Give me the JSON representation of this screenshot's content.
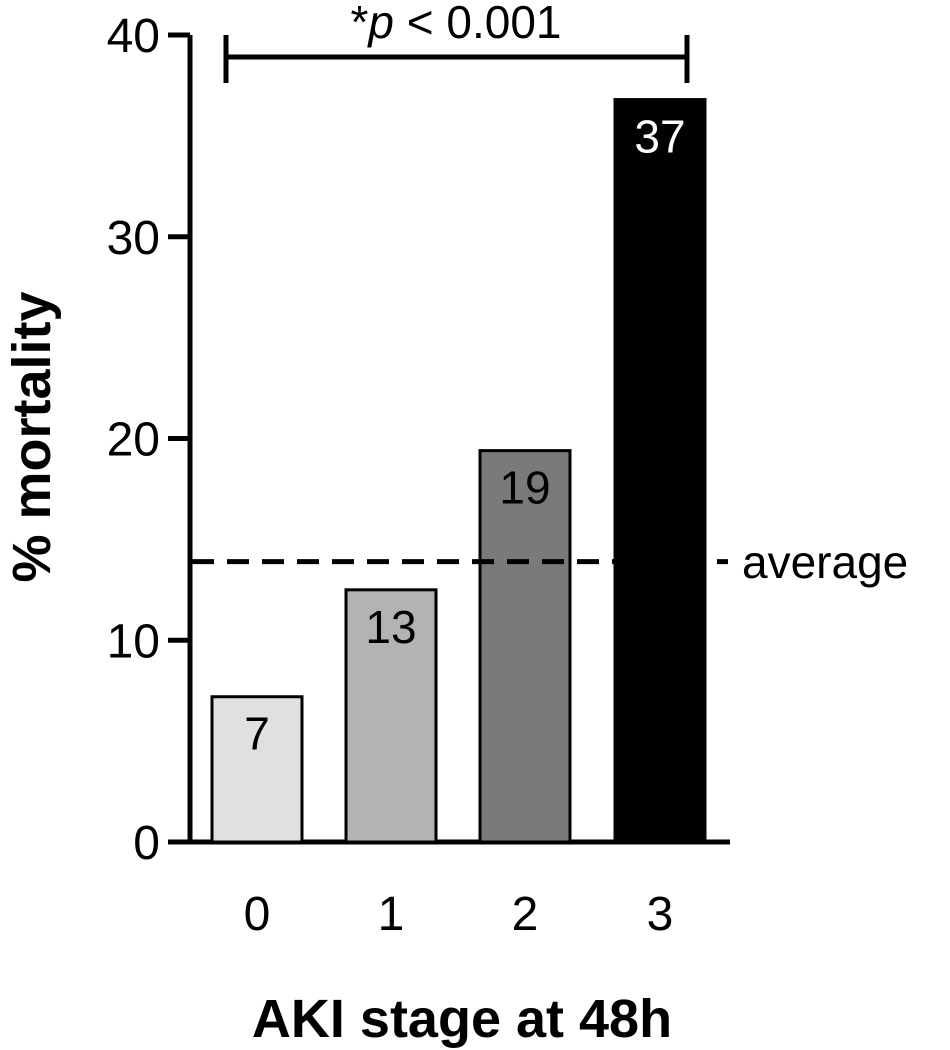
{
  "chart_data": {
    "type": "bar",
    "categories": [
      "0",
      "1",
      "2",
      "3"
    ],
    "values": [
      7,
      13,
      19,
      37
    ],
    "bar_heights": [
      7.2,
      12.5,
      19.4,
      36.8
    ],
    "value_labels": [
      "7",
      "13",
      "19",
      "37"
    ],
    "bar_colors": [
      "#e0e0e0",
      "#b3b3b3",
      "#7a7a7a",
      "#000000"
    ],
    "value_label_colors": [
      "#000000",
      "#000000",
      "#000000",
      "#ffffff"
    ],
    "xlabel": "AKI stage at 48h",
    "ylabel": "% mortality",
    "ylim": [
      0,
      40
    ],
    "yticks": [
      0,
      10,
      20,
      30,
      40
    ],
    "reference_line": {
      "label": "average",
      "value": 13.9,
      "style": "dashed"
    },
    "significance": {
      "from": "0",
      "to": "3",
      "prefix": "*",
      "p_symbol": "p",
      "comparison": " < 0.001"
    },
    "grid": false,
    "legend": "none"
  }
}
